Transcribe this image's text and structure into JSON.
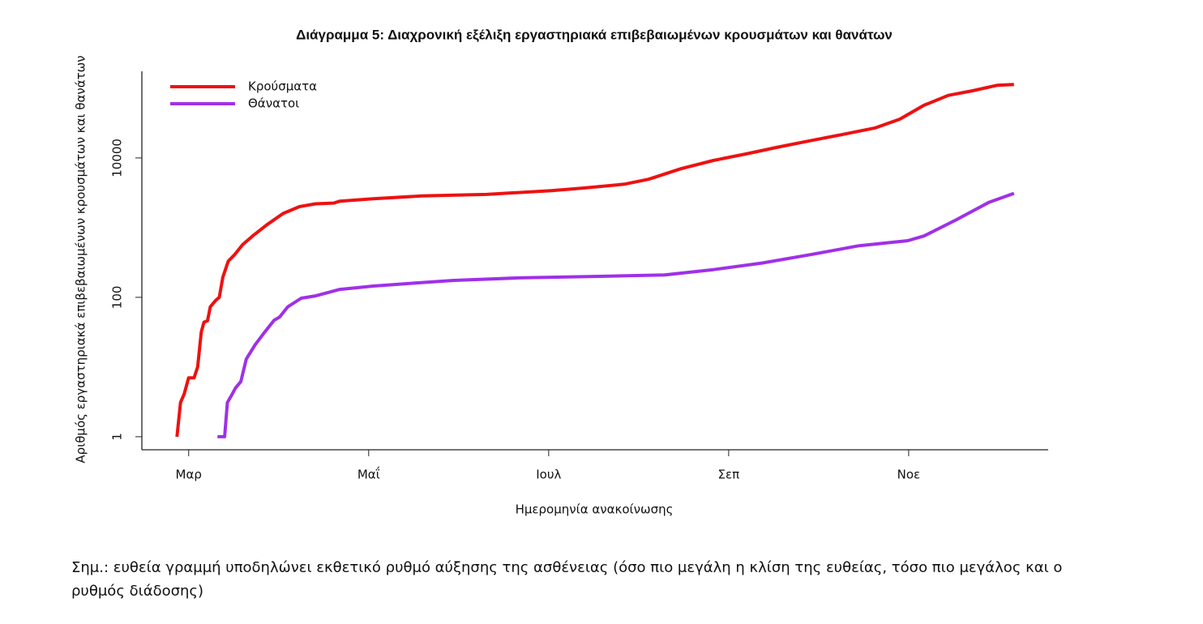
{
  "chart_data": {
    "type": "line",
    "title": "Διάγραμμα 5: Διαχρονική εξέλιξη εργαστηριακά επιβεβαιωμένων κρουσμάτων και θανάτων",
    "x_label": "Ημερομηνία ανακοίνωσης",
    "y_label": "Αριθμός εργαστηριακά επιβεβαιωμένων κρουσμάτων και θανάτων",
    "log_y": true,
    "legend": "top-left",
    "xlim": [
      2.48,
      12.55
    ],
    "ylim": [
      0.65,
      175000
    ],
    "xticks": [
      {
        "value": 3,
        "label": "Μαρ"
      },
      {
        "value": 5,
        "label": "Μαΐ"
      },
      {
        "value": 7,
        "label": "Ιουλ"
      },
      {
        "value": 9,
        "label": "Σεπ"
      },
      {
        "value": 11,
        "label": "Νοε"
      }
    ],
    "yticks": [
      1,
      100,
      10000
    ],
    "series": [
      {
        "name": "Κρούσματα",
        "color": "#ee1111",
        "x": [
          2.87,
          2.91,
          2.95,
          3.0,
          3.06,
          3.1,
          3.14,
          3.17,
          3.21,
          3.24,
          3.3,
          3.34,
          3.38,
          3.44,
          3.51,
          3.6,
          3.71,
          3.87,
          4.05,
          4.23,
          4.41,
          4.61,
          4.68,
          5.05,
          5.59,
          6.31,
          7.03,
          7.39,
          7.84,
          8.11,
          8.47,
          8.83,
          9.19,
          9.55,
          9.91,
          10.27,
          10.63,
          10.9,
          11.17,
          11.44,
          11.71,
          11.98,
          12.17
        ],
        "values": [
          1,
          3.1,
          4.1,
          7,
          7,
          10,
          32,
          44,
          46,
          73,
          90,
          100,
          195,
          330,
          410,
          570,
          760,
          1100,
          1600,
          2000,
          2200,
          2250,
          2400,
          2600,
          2850,
          3000,
          3400,
          3700,
          4200,
          4950,
          7000,
          9200,
          11400,
          14300,
          17700,
          21800,
          27000,
          36000,
          57000,
          79000,
          92000,
          110000,
          113000
        ]
      },
      {
        "name": "Θάνατοι",
        "color": "#a030e8",
        "x": [
          3.32,
          3.4,
          3.43,
          3.48,
          3.52,
          3.58,
          3.64,
          3.74,
          3.83,
          3.95,
          4.01,
          4.1,
          4.25,
          4.41,
          4.68,
          5.05,
          5.5,
          5.95,
          6.67,
          7.57,
          8.29,
          8.83,
          9.37,
          9.91,
          10.45,
          10.99,
          11.17,
          11.53,
          11.89,
          12.17
        ],
        "values": [
          1,
          1,
          3.1,
          4,
          5,
          6.2,
          13,
          21,
          30,
          47,
          52,
          73,
          97,
          105,
          130,
          145,
          160,
          175,
          190,
          200,
          210,
          250,
          310,
          410,
          550,
          650,
          760,
          1300,
          2300,
          3100
        ]
      }
    ]
  },
  "note": "Σημ.: ευθεία γραμμή υποδηλώνει εκθετικό ρυθμό αύξησης της ασθένειας (όσο πιο μεγάλη η κλίση της ευθείας, τόσο πιο μεγάλος και ο ρυθμός διάδοσης)"
}
